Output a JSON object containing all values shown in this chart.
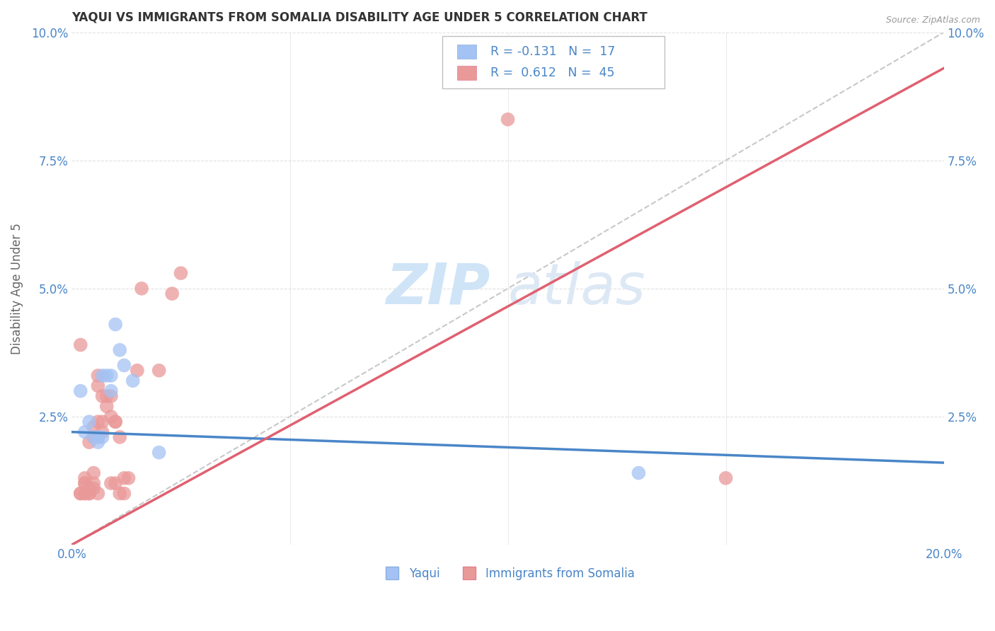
{
  "title": "YAQUI VS IMMIGRANTS FROM SOMALIA DISABILITY AGE UNDER 5 CORRELATION CHART",
  "source": "Source: ZipAtlas.com",
  "ylabel": "Disability Age Under 5",
  "xlim": [
    0.0,
    0.2
  ],
  "ylim": [
    0.0,
    0.1
  ],
  "xticks": [
    0.0,
    0.05,
    0.1,
    0.15,
    0.2
  ],
  "xtick_labels": [
    "0.0%",
    "",
    "",
    "",
    "20.0%"
  ],
  "yticks": [
    0.0,
    0.025,
    0.05,
    0.075,
    0.1
  ],
  "ytick_labels": [
    "",
    "2.5%",
    "5.0%",
    "7.5%",
    "10.0%"
  ],
  "legend_labels": [
    "Yaqui",
    "Immigrants from Somalia"
  ],
  "legend_r": [
    "R = -0.131",
    "R =  0.612"
  ],
  "legend_n": [
    "N =  17",
    "N =  45"
  ],
  "blue_color": "#a4c2f4",
  "pink_color": "#ea9999",
  "blue_line_color": "#4a86c8",
  "pink_line_color": "#e06070",
  "blue_scatter": [
    [
      0.003,
      0.022
    ],
    [
      0.004,
      0.024
    ],
    [
      0.005,
      0.021
    ],
    [
      0.006,
      0.02
    ],
    [
      0.006,
      0.021
    ],
    [
      0.007,
      0.021
    ],
    [
      0.007,
      0.033
    ],
    [
      0.008,
      0.033
    ],
    [
      0.009,
      0.033
    ],
    [
      0.009,
      0.03
    ],
    [
      0.01,
      0.043
    ],
    [
      0.011,
      0.038
    ],
    [
      0.012,
      0.035
    ],
    [
      0.014,
      0.032
    ],
    [
      0.02,
      0.018
    ],
    [
      0.13,
      0.014
    ],
    [
      0.002,
      0.03
    ]
  ],
  "pink_scatter": [
    [
      0.002,
      0.01
    ],
    [
      0.002,
      0.01
    ],
    [
      0.003,
      0.01
    ],
    [
      0.003,
      0.012
    ],
    [
      0.003,
      0.01
    ],
    [
      0.003,
      0.012
    ],
    [
      0.003,
      0.013
    ],
    [
      0.004,
      0.01
    ],
    [
      0.004,
      0.011
    ],
    [
      0.004,
      0.02
    ],
    [
      0.004,
      0.01
    ],
    [
      0.005,
      0.012
    ],
    [
      0.005,
      0.014
    ],
    [
      0.005,
      0.011
    ],
    [
      0.005,
      0.021
    ],
    [
      0.005,
      0.023
    ],
    [
      0.006,
      0.01
    ],
    [
      0.006,
      0.021
    ],
    [
      0.006,
      0.024
    ],
    [
      0.006,
      0.031
    ],
    [
      0.006,
      0.033
    ],
    [
      0.007,
      0.022
    ],
    [
      0.007,
      0.024
    ],
    [
      0.007,
      0.029
    ],
    [
      0.008,
      0.027
    ],
    [
      0.008,
      0.029
    ],
    [
      0.009,
      0.029
    ],
    [
      0.009,
      0.012
    ],
    [
      0.009,
      0.025
    ],
    [
      0.01,
      0.024
    ],
    [
      0.01,
      0.024
    ],
    [
      0.01,
      0.012
    ],
    [
      0.011,
      0.021
    ],
    [
      0.011,
      0.01
    ],
    [
      0.012,
      0.01
    ],
    [
      0.012,
      0.013
    ],
    [
      0.013,
      0.013
    ],
    [
      0.015,
      0.034
    ],
    [
      0.016,
      0.05
    ],
    [
      0.02,
      0.034
    ],
    [
      0.023,
      0.049
    ],
    [
      0.025,
      0.053
    ],
    [
      0.1,
      0.083
    ],
    [
      0.15,
      0.013
    ],
    [
      0.002,
      0.039
    ]
  ],
  "blue_line_x": [
    0.0,
    0.2
  ],
  "blue_line_y": [
    0.022,
    0.016
  ],
  "pink_line_x": [
    0.0,
    0.2
  ],
  "pink_line_y": [
    0.0,
    0.093
  ],
  "diag_line_x": [
    0.0,
    0.2
  ],
  "diag_line_y": [
    0.0,
    0.1
  ],
  "watermark_zip": "ZIP",
  "watermark_atlas": "atlas",
  "watermark_color": "#d0e4f7",
  "bg_color": "#ffffff",
  "grid_color": "#e0e0e0"
}
